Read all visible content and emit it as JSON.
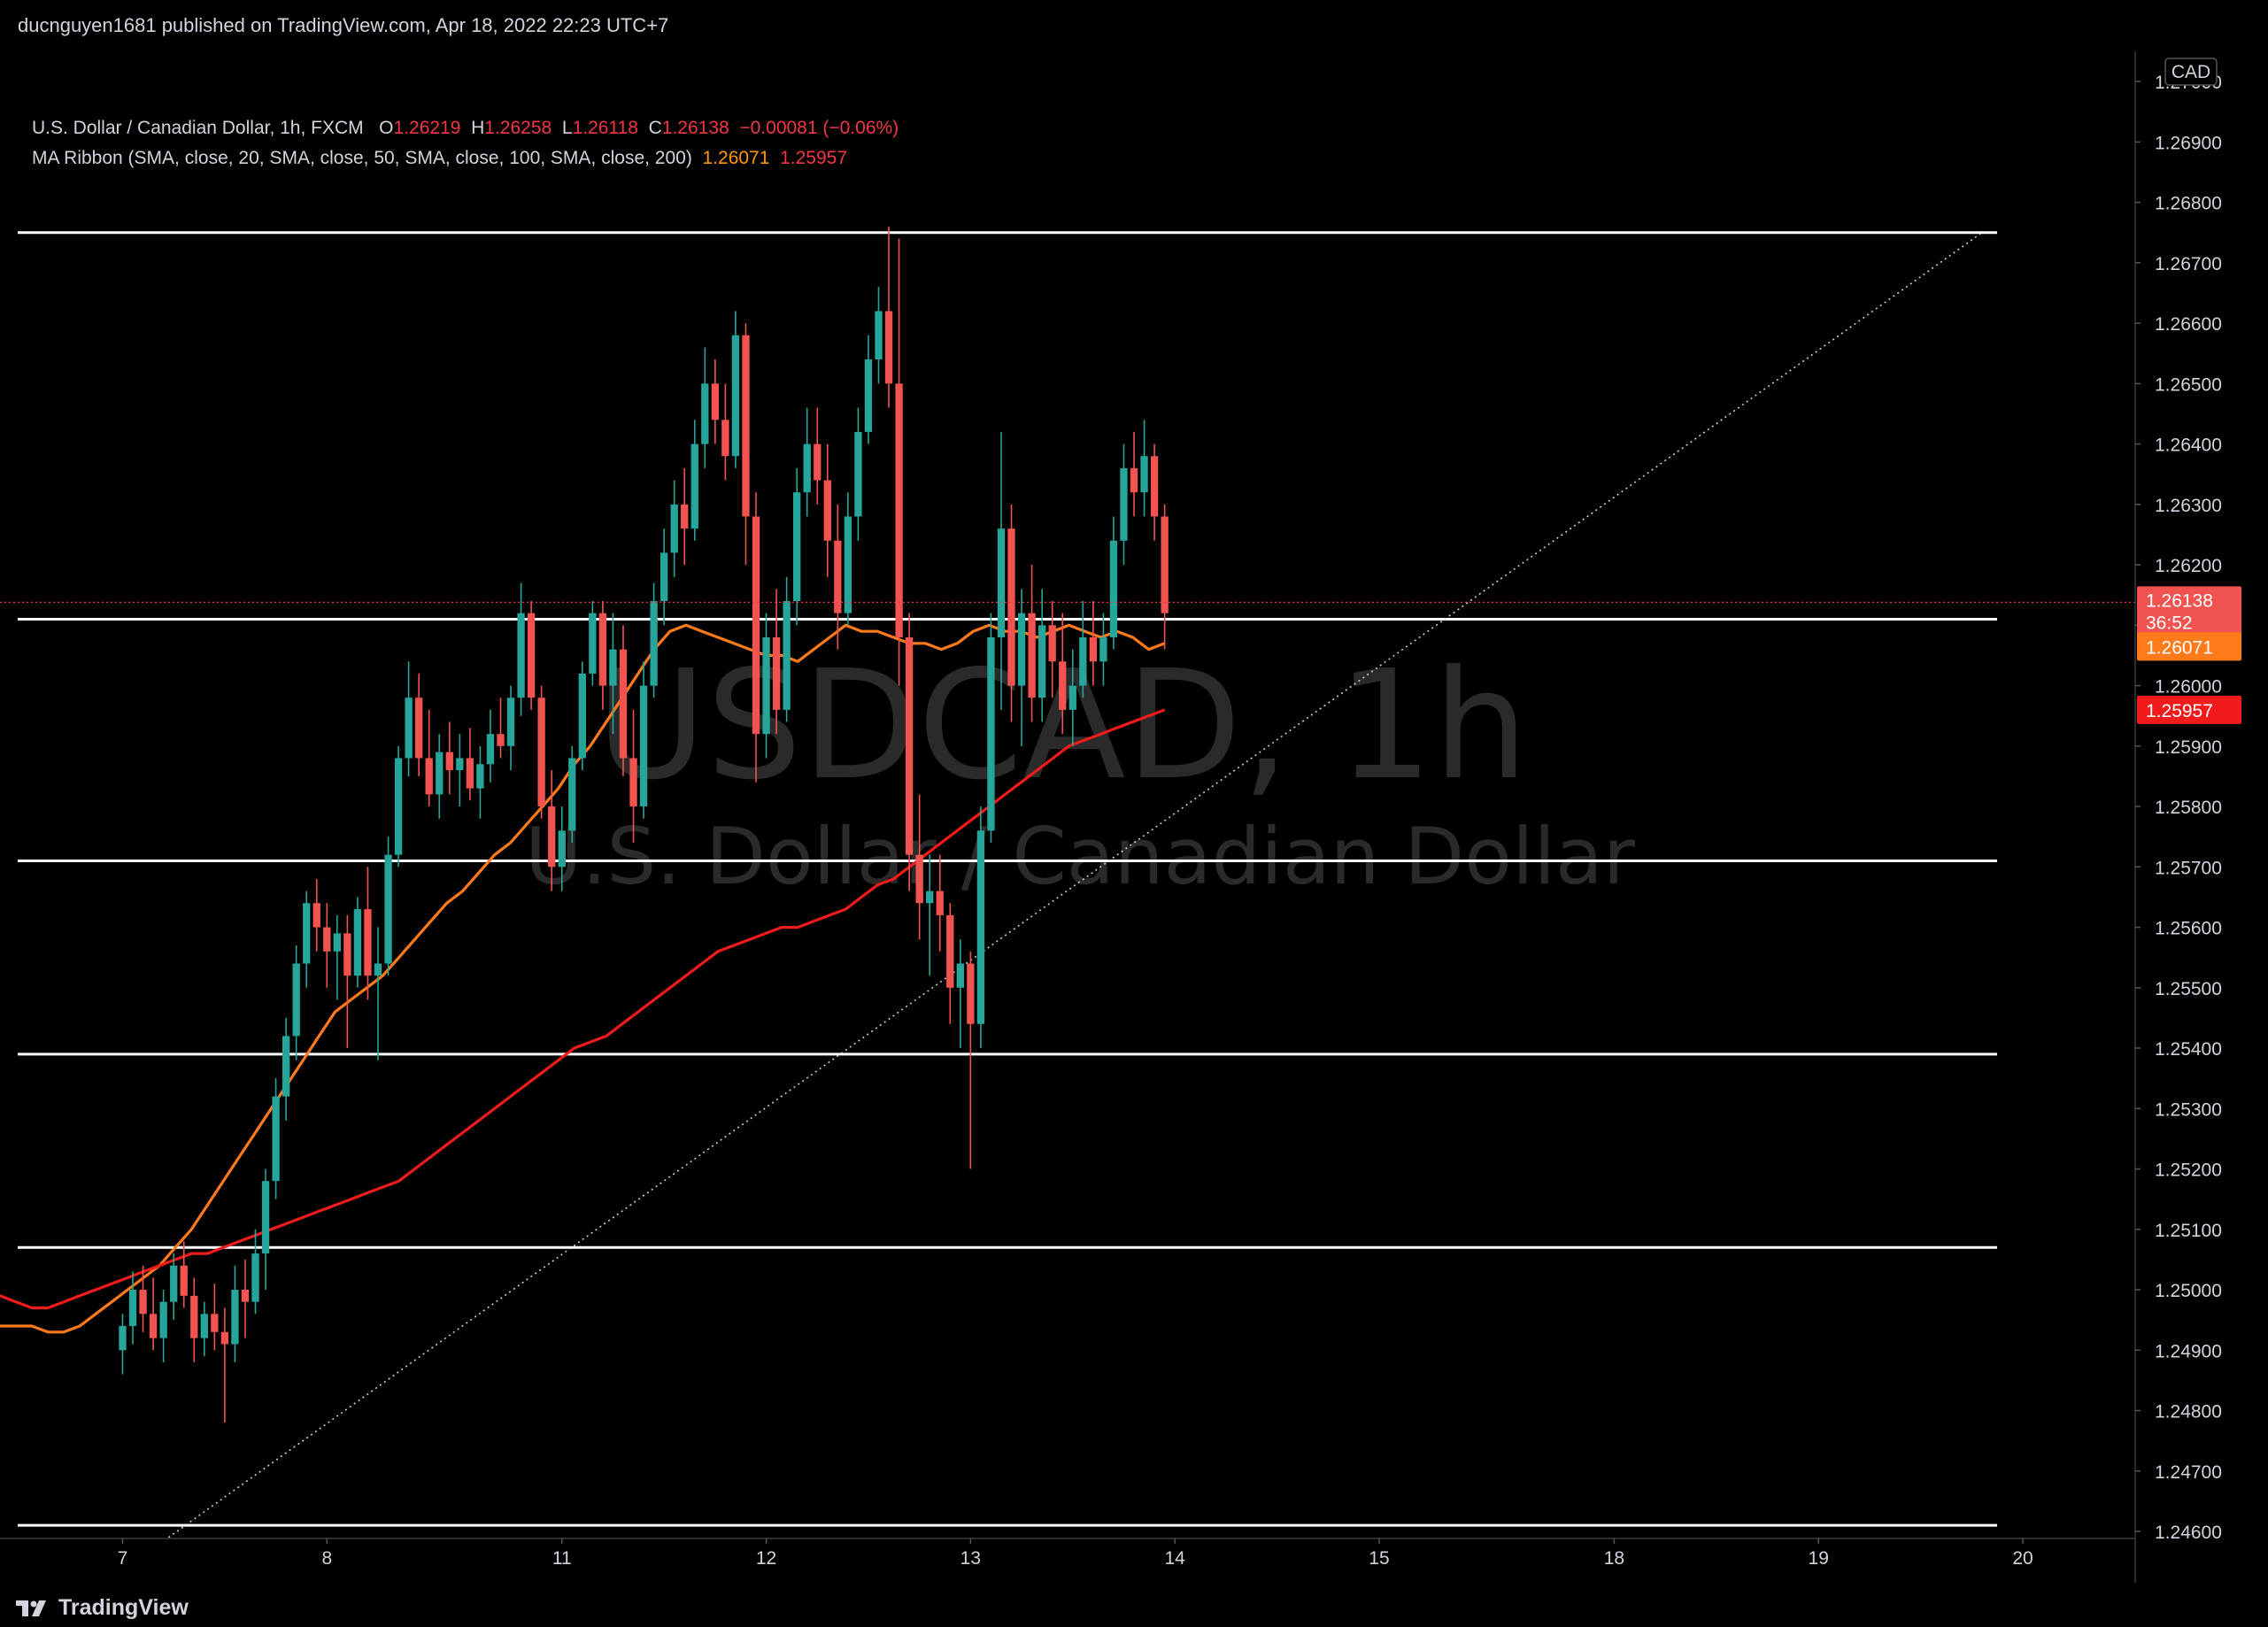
{
  "header": {
    "publish_line": "ducnguyen1681 published on TradingView.com, Apr 18, 2022 22:23 UTC+7"
  },
  "legend": {
    "symbol": "U.S. Dollar / Canadian Dollar, 1h, FXCM",
    "o_label": "O",
    "o_value": "1.26219",
    "h_label": "H",
    "h_value": "1.26258",
    "l_label": "L",
    "l_value": "1.26118",
    "c_label": "C",
    "c_value": "1.26138",
    "change": "−0.00081 (−0.06%)",
    "indicator": "MA Ribbon (SMA, close, 20, SMA, close, 50, SMA, close, 100, SMA, close, 200)",
    "ma_value_1": "1.26071",
    "ma_value_2": "1.25957"
  },
  "watermark": {
    "symbol": "USDCAD, 1h",
    "description": "U.S. Dollar / Canadian Dollar"
  },
  "price_axis": {
    "currency": "CAD",
    "current_price": "1.26138",
    "countdown": "36:52",
    "ma_label_1": "1.26071",
    "ma_label_2": "1.25957"
  },
  "footer": {
    "brand": "TradingView"
  },
  "colors": {
    "up": "#26a69a",
    "down": "#f05350",
    "ma_fast": "#ff7a1a",
    "ma_slow": "#f21b1b",
    "level": "#ffffff",
    "trend": "#cfcfcf",
    "price_line": "#f23645"
  },
  "chart_data": {
    "type": "candlestick",
    "title": "USDCAD, 1h",
    "ylim": [
      1.246,
      1.2705
    ],
    "yticks": [
      1.246,
      1.247,
      1.248,
      1.249,
      1.25,
      1.251,
      1.252,
      1.253,
      1.254,
      1.255,
      1.256,
      1.257,
      1.258,
      1.259,
      1.26,
      1.261,
      1.262,
      1.263,
      1.264,
      1.265,
      1.266,
      1.267,
      1.268,
      1.269,
      1.27
    ],
    "ytick_labels": [
      "1.24600",
      "1.24700",
      "1.24800",
      "1.24900",
      "1.25000",
      "1.25100",
      "1.25200",
      "1.25300",
      "1.25400",
      "1.25500",
      "1.25600",
      "1.25700",
      "1.25800",
      "1.25900",
      "1.26000",
      "1.26100",
      "1.26200",
      "1.26300",
      "1.26400",
      "1.26500",
      "1.26600",
      "1.26700",
      "1.26800",
      "1.26900",
      "1.27000"
    ],
    "x_range_bars": [
      -12,
      197
    ],
    "xticks": [
      {
        "label": "7",
        "bar": 0
      },
      {
        "label": "8",
        "bar": 20
      },
      {
        "label": "11",
        "bar": 43
      },
      {
        "label": "12",
        "bar": 63
      },
      {
        "label": "13",
        "bar": 83
      },
      {
        "label": "14",
        "bar": 103
      },
      {
        "label": "15",
        "bar": 123
      },
      {
        "label": "18",
        "bar": 146
      },
      {
        "label": "19",
        "bar": 166
      },
      {
        "label": "20",
        "bar": 186
      }
    ],
    "current_price": 1.26138,
    "horizontal_levels": [
      1.2675,
      1.2611,
      1.2571,
      1.2539,
      1.2507,
      1.2461
    ],
    "trendline": {
      "from": {
        "bar": 4.5,
        "price": 1.2459
      },
      "to": {
        "bar": 182,
        "price": 1.2675
      }
    },
    "series": [
      {
        "name": "MA 20 (close)",
        "values": [
          1.2494,
          1.2494,
          1.2494,
          1.2493,
          1.2493,
          1.2494,
          1.2496,
          1.2498,
          1.25,
          1.2502,
          1.2504,
          1.2507,
          1.251,
          1.2514,
          1.2518,
          1.2522,
          1.2526,
          1.253,
          1.2534,
          1.2538,
          1.2542,
          1.2546,
          1.2548,
          1.255,
          1.2552,
          1.2555,
          1.2558,
          1.2561,
          1.2564,
          1.2566,
          1.2569,
          1.2572,
          1.2574,
          1.2577,
          1.258,
          1.2583,
          1.2587,
          1.259,
          1.2594,
          1.2598,
          1.2602,
          1.2606,
          1.2609,
          1.261,
          1.2609,
          1.2608,
          1.2607,
          1.2606,
          1.2605,
          1.2605,
          1.2604,
          1.2606,
          1.2608,
          1.261,
          1.2609,
          1.2609,
          1.2608,
          1.2607,
          1.2607,
          1.2606,
          1.2607,
          1.2609,
          1.261,
          1.2609,
          1.2609,
          1.2608,
          1.2609,
          1.261,
          1.2609,
          1.2608,
          1.2609,
          1.2608,
          1.2606,
          1.2607
        ]
      },
      {
        "name": "MA 200 (close)",
        "values": [
          1.2499,
          1.2498,
          1.2497,
          1.2497,
          1.2498,
          1.2499,
          1.25,
          1.2501,
          1.2502,
          1.2503,
          1.2504,
          1.2505,
          1.2506,
          1.2506,
          1.2507,
          1.2508,
          1.2509,
          1.251,
          1.2511,
          1.2512,
          1.2513,
          1.2514,
          1.2515,
          1.2516,
          1.2517,
          1.2518,
          1.252,
          1.2522,
          1.2524,
          1.2526,
          1.2528,
          1.253,
          1.2532,
          1.2534,
          1.2536,
          1.2538,
          1.254,
          1.2541,
          1.2542,
          1.2544,
          1.2546,
          1.2548,
          1.255,
          1.2552,
          1.2554,
          1.2556,
          1.2557,
          1.2558,
          1.2559,
          1.256,
          1.256,
          1.2561,
          1.2562,
          1.2563,
          1.2565,
          1.2567,
          1.2568,
          1.257,
          1.2572,
          1.2574,
          1.2576,
          1.2578,
          1.258,
          1.2582,
          1.2584,
          1.2586,
          1.2588,
          1.259,
          1.2591,
          1.2592,
          1.2593,
          1.2594,
          1.2595,
          1.2596
        ]
      }
    ],
    "candles": [
      [
        1.249,
        1.2496,
        1.2486,
        1.2494
      ],
      [
        1.2494,
        1.2503,
        1.2491,
        1.25
      ],
      [
        1.25,
        1.2504,
        1.2493,
        1.2496
      ],
      [
        1.2496,
        1.2502,
        1.249,
        1.2492
      ],
      [
        1.2492,
        1.25,
        1.2488,
        1.2498
      ],
      [
        1.2498,
        1.2506,
        1.2495,
        1.2504
      ],
      [
        1.2504,
        1.2508,
        1.2497,
        1.2499
      ],
      [
        1.2499,
        1.2502,
        1.2488,
        1.2492
      ],
      [
        1.2492,
        1.2498,
        1.2489,
        1.2496
      ],
      [
        1.2496,
        1.2501,
        1.249,
        1.2493
      ],
      [
        1.2493,
        1.2497,
        1.2478,
        1.2491
      ],
      [
        1.2491,
        1.2504,
        1.2488,
        1.25
      ],
      [
        1.25,
        1.2505,
        1.2492,
        1.2498
      ],
      [
        1.2498,
        1.251,
        1.2496,
        1.2506
      ],
      [
        1.2506,
        1.252,
        1.25,
        1.2518
      ],
      [
        1.2518,
        1.2535,
        1.2515,
        1.2532
      ],
      [
        1.2532,
        1.2545,
        1.2528,
        1.2542
      ],
      [
        1.2542,
        1.2557,
        1.2538,
        1.2554
      ],
      [
        1.2554,
        1.2566,
        1.255,
        1.2564
      ],
      [
        1.2564,
        1.2568,
        1.2556,
        1.256
      ],
      [
        1.256,
        1.2564,
        1.255,
        1.2556
      ],
      [
        1.2556,
        1.2562,
        1.2548,
        1.2559
      ],
      [
        1.2559,
        1.2562,
        1.254,
        1.2552
      ],
      [
        1.2552,
        1.2565,
        1.255,
        1.2563
      ],
      [
        1.2563,
        1.257,
        1.2548,
        1.2552
      ],
      [
        1.2552,
        1.256,
        1.2538,
        1.2554
      ],
      [
        1.2554,
        1.2575,
        1.2552,
        1.2572
      ],
      [
        1.2572,
        1.259,
        1.257,
        1.2588
      ],
      [
        1.2588,
        1.2604,
        1.2585,
        1.2598
      ],
      [
        1.2598,
        1.2602,
        1.2585,
        1.2588
      ],
      [
        1.2588,
        1.2596,
        1.258,
        1.2582
      ],
      [
        1.2582,
        1.2592,
        1.2578,
        1.2589
      ],
      [
        1.2589,
        1.2594,
        1.2582,
        1.2586
      ],
      [
        1.2586,
        1.2592,
        1.258,
        1.2588
      ],
      [
        1.2588,
        1.2593,
        1.2581,
        1.2583
      ],
      [
        1.2583,
        1.259,
        1.2578,
        1.2587
      ],
      [
        1.2587,
        1.2596,
        1.2584,
        1.2592
      ],
      [
        1.2592,
        1.2598,
        1.2588,
        1.259
      ],
      [
        1.259,
        1.26,
        1.2586,
        1.2598
      ],
      [
        1.2598,
        1.2617,
        1.2595,
        1.2612
      ],
      [
        1.2612,
        1.2614,
        1.2596,
        1.2598
      ],
      [
        1.2598,
        1.26,
        1.2578,
        1.258
      ],
      [
        1.258,
        1.2586,
        1.2566,
        1.257
      ],
      [
        1.257,
        1.258,
        1.2566,
        1.2576
      ],
      [
        1.2576,
        1.259,
        1.2574,
        1.2588
      ],
      [
        1.2588,
        1.2604,
        1.2586,
        1.2602
      ],
      [
        1.2602,
        1.2614,
        1.26,
        1.2612
      ],
      [
        1.2612,
        1.2614,
        1.2596,
        1.26
      ],
      [
        1.26,
        1.2612,
        1.2592,
        1.2606
      ],
      [
        1.2606,
        1.261,
        1.2585,
        1.2588
      ],
      [
        1.2588,
        1.2596,
        1.2574,
        1.258
      ],
      [
        1.258,
        1.2604,
        1.2578,
        1.26
      ],
      [
        1.26,
        1.2617,
        1.2598,
        1.2614
      ],
      [
        1.2614,
        1.2626,
        1.261,
        1.2622
      ],
      [
        1.2622,
        1.2634,
        1.2618,
        1.263
      ],
      [
        1.263,
        1.2636,
        1.262,
        1.2626
      ],
      [
        1.2626,
        1.2644,
        1.2624,
        1.264
      ],
      [
        1.264,
        1.2656,
        1.2636,
        1.265
      ],
      [
        1.265,
        1.2654,
        1.264,
        1.2644
      ],
      [
        1.2644,
        1.265,
        1.2634,
        1.2638
      ],
      [
        1.2638,
        1.2662,
        1.2636,
        1.2658
      ],
      [
        1.2658,
        1.266,
        1.262,
        1.2628
      ],
      [
        1.2628,
        1.2632,
        1.2584,
        1.2592
      ],
      [
        1.2592,
        1.2612,
        1.2588,
        1.2608
      ],
      [
        1.2608,
        1.2616,
        1.2592,
        1.2596
      ],
      [
        1.2596,
        1.2618,
        1.2594,
        1.2614
      ],
      [
        1.2614,
        1.2636,
        1.261,
        1.2632
      ],
      [
        1.2632,
        1.2646,
        1.2628,
        1.264
      ],
      [
        1.264,
        1.2646,
        1.263,
        1.2634
      ],
      [
        1.2634,
        1.264,
        1.2618,
        1.2624
      ],
      [
        1.2624,
        1.263,
        1.2606,
        1.2612
      ],
      [
        1.2612,
        1.2632,
        1.261,
        1.2628
      ],
      [
        1.2628,
        1.2646,
        1.2624,
        1.2642
      ],
      [
        1.2642,
        1.2658,
        1.264,
        1.2654
      ],
      [
        1.2654,
        1.2666,
        1.265,
        1.2662
      ],
      [
        1.2662,
        1.2676,
        1.2646,
        1.265
      ],
      [
        1.265,
        1.2674,
        1.26,
        1.2608
      ],
      [
        1.2608,
        1.2612,
        1.2566,
        1.2572
      ],
      [
        1.2572,
        1.2582,
        1.2558,
        1.2564
      ],
      [
        1.2564,
        1.2572,
        1.2552,
        1.2566
      ],
      [
        1.2566,
        1.2572,
        1.2556,
        1.2562
      ],
      [
        1.2562,
        1.2564,
        1.2544,
        1.255
      ],
      [
        1.255,
        1.2558,
        1.254,
        1.2554
      ],
      [
        1.2554,
        1.2556,
        1.252,
        1.2544
      ],
      [
        1.2544,
        1.258,
        1.254,
        1.2576
      ],
      [
        1.2576,
        1.2612,
        1.2574,
        1.2608
      ],
      [
        1.2608,
        1.2642,
        1.2596,
        1.2626
      ],
      [
        1.2626,
        1.263,
        1.2594,
        1.26
      ],
      [
        1.26,
        1.2616,
        1.259,
        1.2612
      ],
      [
        1.2612,
        1.262,
        1.2594,
        1.2598
      ],
      [
        1.2598,
        1.2616,
        1.2594,
        1.261
      ],
      [
        1.261,
        1.2614,
        1.2598,
        1.2604
      ],
      [
        1.2604,
        1.2612,
        1.2592,
        1.2596
      ],
      [
        1.2596,
        1.2606,
        1.259,
        1.26
      ],
      [
        1.26,
        1.2614,
        1.2598,
        1.2608
      ],
      [
        1.2608,
        1.2614,
        1.26,
        1.2604
      ],
      [
        1.2604,
        1.2612,
        1.26,
        1.2608
      ],
      [
        1.2608,
        1.2628,
        1.2606,
        1.2624
      ],
      [
        1.2624,
        1.264,
        1.262,
        1.2636
      ],
      [
        1.2636,
        1.2642,
        1.2628,
        1.2632
      ],
      [
        1.2632,
        1.2644,
        1.2628,
        1.2638
      ],
      [
        1.2638,
        1.264,
        1.2624,
        1.2628
      ],
      [
        1.2628,
        1.263,
        1.2606,
        1.2612
      ]
    ]
  }
}
